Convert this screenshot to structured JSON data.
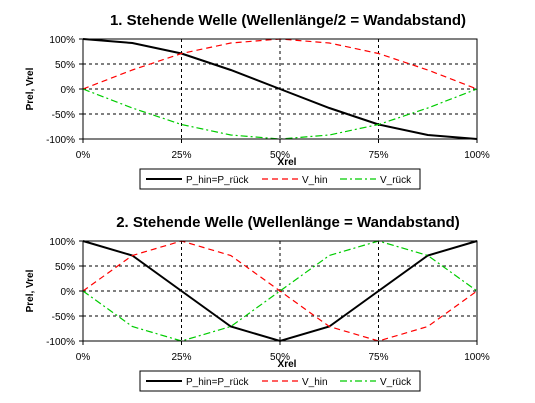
{
  "chart_data": [
    {
      "type": "line",
      "title": "1. Stehende Welle (Wellenlänge/2 = Wandabstand)",
      "xlabel": "Xrel",
      "ylabel": "Prel, Vrel",
      "xlim": [
        0,
        1
      ],
      "ylim": [
        -1,
        1
      ],
      "x_ticks": [
        "0%",
        "25%",
        "50%",
        "75%",
        "100%"
      ],
      "y_ticks": [
        "100%",
        "50%",
        "0%",
        "-50%",
        "-100%"
      ],
      "grid": true,
      "legend_position": "bottom",
      "x": [
        0,
        0.125,
        0.25,
        0.375,
        0.5,
        0.625,
        0.75,
        0.875,
        1
      ],
      "series": [
        {
          "name": "P_hin=P_rück",
          "color": "#000000",
          "dash": "solid",
          "values": [
            1,
            0.92,
            0.71,
            0.38,
            0,
            -0.38,
            -0.71,
            -0.92,
            -1
          ]
        },
        {
          "name": "V_hin",
          "color": "#ff0000",
          "dash": "dashed",
          "values": [
            0,
            0.38,
            0.71,
            0.92,
            1,
            0.92,
            0.71,
            0.38,
            0
          ]
        },
        {
          "name": "V_rück",
          "color": "#00cc00",
          "dash": "dashdot",
          "values": [
            0,
            -0.38,
            -0.71,
            -0.92,
            -1,
            -0.92,
            -0.71,
            -0.38,
            0
          ]
        }
      ]
    },
    {
      "type": "line",
      "title": "2. Stehende Welle (Wellenlänge = Wandabstand)",
      "xlabel": "Xrel",
      "ylabel": "Prel, Vrel",
      "xlim": [
        0,
        1
      ],
      "ylim": [
        -1,
        1
      ],
      "x_ticks": [
        "0%",
        "25%",
        "50%",
        "75%",
        "100%"
      ],
      "y_ticks": [
        "100%",
        "50%",
        "0%",
        "-50%",
        "-100%"
      ],
      "grid": true,
      "legend_position": "bottom",
      "x": [
        0,
        0.125,
        0.25,
        0.375,
        0.5,
        0.625,
        0.75,
        0.875,
        1
      ],
      "series": [
        {
          "name": "P_hin=P_rück",
          "color": "#000000",
          "dash": "solid",
          "values": [
            1,
            0.71,
            0,
            -0.71,
            -1,
            -0.71,
            0,
            0.71,
            1
          ]
        },
        {
          "name": "V_hin",
          "color": "#ff0000",
          "dash": "dashed",
          "values": [
            0,
            0.71,
            1,
            0.71,
            0,
            -0.71,
            -1,
            -0.71,
            0
          ]
        },
        {
          "name": "V_rück",
          "color": "#00cc00",
          "dash": "dashdot",
          "values": [
            0,
            -0.71,
            -1,
            -0.71,
            0,
            0.71,
            1,
            0.71,
            0
          ]
        }
      ]
    }
  ]
}
